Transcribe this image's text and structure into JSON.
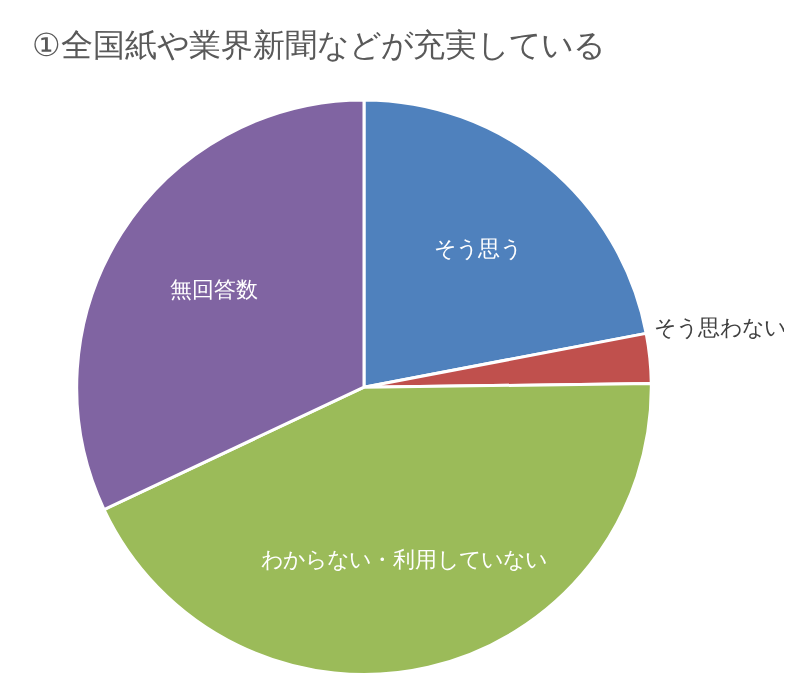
{
  "chart_data": {
    "type": "pie",
    "title": "①全国紙や業界新聞などが充実している",
    "categories": [
      "そう思う",
      "そう思わない",
      "わからない・利用していない",
      "無回答数"
    ],
    "values": [
      22,
      2.8,
      43.2,
      32
    ],
    "colors": [
      "#4f81bd",
      "#c0504d",
      "#9bbb59",
      "#8064a2"
    ],
    "legend": false
  }
}
